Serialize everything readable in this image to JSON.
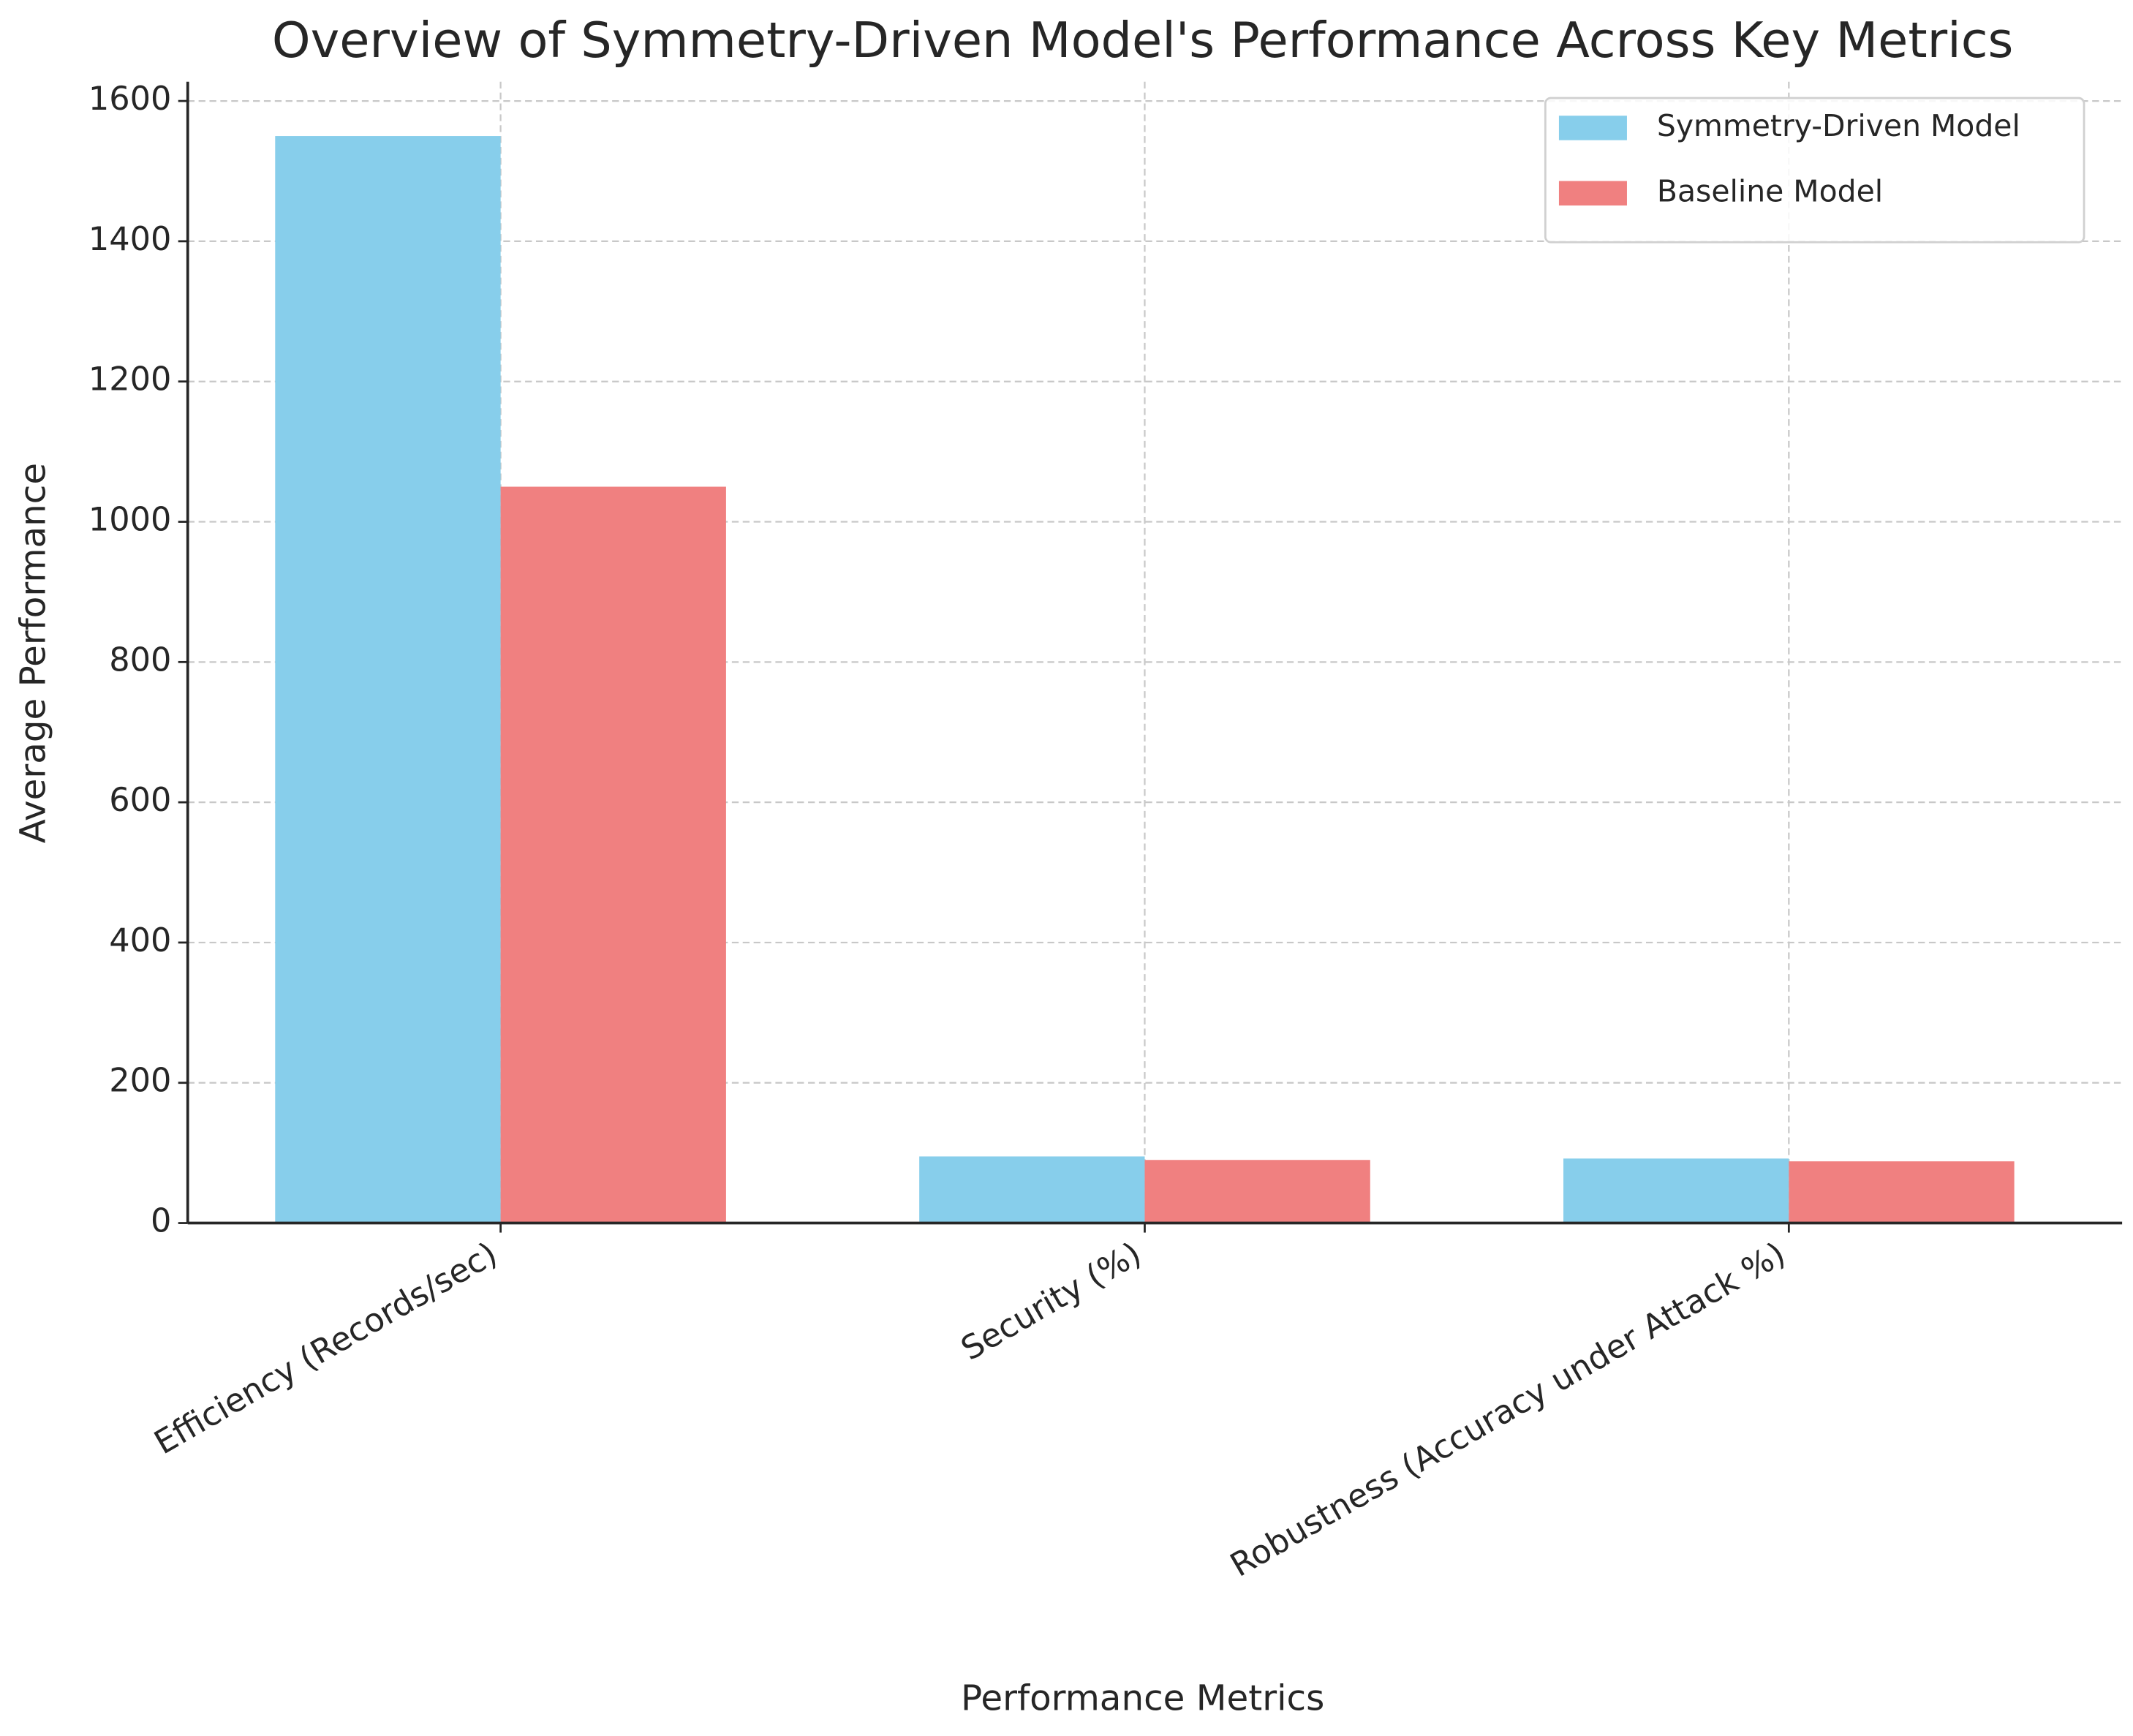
{
  "chart_data": {
    "type": "bar",
    "title": "Overview of Symmetry-Driven Model's Performance Across Key Metrics",
    "xlabel": "Performance Metrics",
    "ylabel": "Average Performance",
    "categories": [
      "Efficiency (Records/sec)",
      "Security (%)",
      "Robustness (Accuracy under Attack %)"
    ],
    "series": [
      {
        "name": "Symmetry-Driven Model",
        "color": "#87ceeb",
        "values": [
          1550,
          95,
          92
        ]
      },
      {
        "name": "Baseline Model",
        "color": "#f08080",
        "values": [
          1050,
          90,
          88
        ]
      }
    ],
    "ylim": [
      0,
      1627.5
    ],
    "yticks": [
      0,
      200,
      400,
      600,
      800,
      1000,
      1200,
      1400,
      1600
    ],
    "grid": true,
    "legend": "upper right"
  }
}
